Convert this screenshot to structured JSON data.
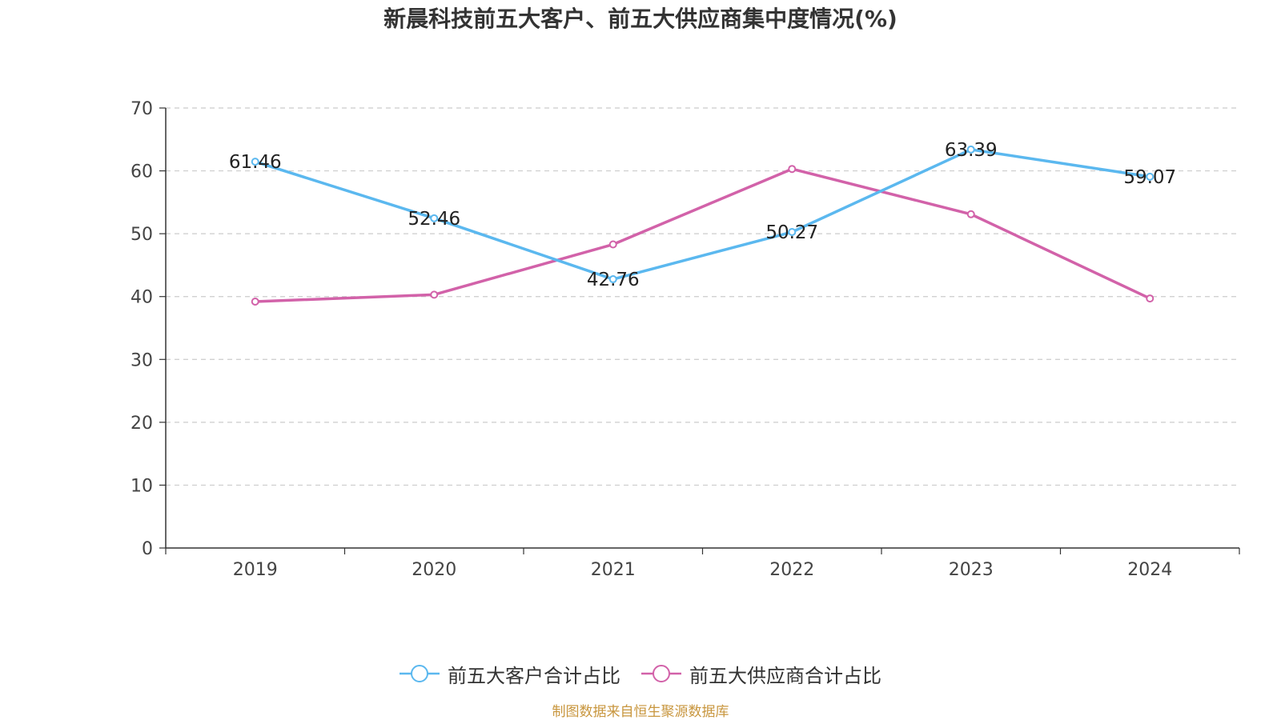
{
  "title": "新晨科技前五大客户、前五大供应商集中度情况(%)",
  "source": "制图数据来自恒生聚源数据库",
  "colors": {
    "series1": "#5bb8ef",
    "series2": "#d262a9",
    "grid": "#cccccc",
    "axis": "#333333",
    "source": "#c8963e"
  },
  "chart_data": {
    "type": "line",
    "title": "新晨科技前五大客户、前五大供应商集中度情况(%)",
    "x": [
      "2019",
      "2020",
      "2021",
      "2022",
      "2023",
      "2024"
    ],
    "ylim": [
      0,
      70
    ],
    "yticks": [
      0,
      10,
      20,
      30,
      40,
      50,
      60,
      70
    ],
    "grid": true,
    "legend_position": "bottom-center",
    "series": [
      {
        "name": "前五大客户合计占比",
        "values": [
          61.46,
          52.46,
          42.76,
          50.27,
          63.39,
          59.07
        ],
        "labels": [
          "61.46",
          "52.46",
          "42.76",
          "50.27",
          "63.39",
          "59.07"
        ],
        "color": "#5bb8ef"
      },
      {
        "name": "前五大供应商合计占比",
        "values": [
          39.2,
          40.3,
          48.3,
          60.3,
          53.1,
          39.7
        ],
        "labels": [],
        "color": "#d262a9"
      }
    ]
  }
}
